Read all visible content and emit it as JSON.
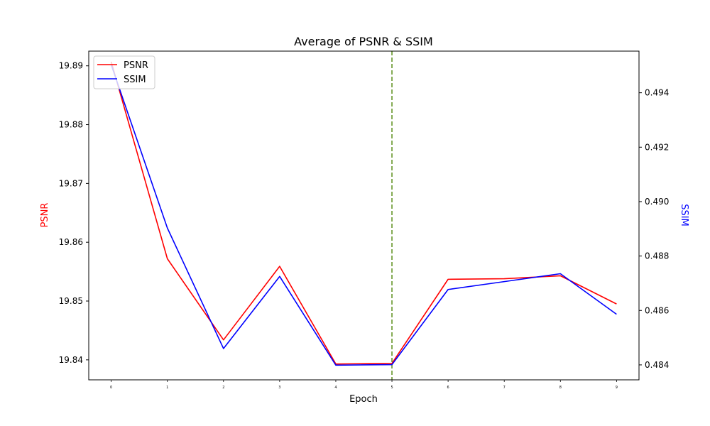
{
  "chart_data": {
    "type": "line",
    "title": "Average of PSNR & SSIM",
    "xlabel": "Epoch",
    "ylabel_left": "PSNR",
    "ylabel_right": "SSIM",
    "x": [
      0,
      1,
      2,
      3,
      4,
      5,
      6,
      7,
      8,
      9
    ],
    "xlim": [
      -0.4,
      9.4
    ],
    "ylim_left": [
      19.8366,
      19.8925
    ],
    "ylim_right": [
      0.48345,
      0.49553
    ],
    "left_ticks": [
      "19.84",
      "19.85",
      "19.86",
      "19.87",
      "19.88",
      "19.89"
    ],
    "right_ticks": [
      "0.484",
      "0.486",
      "0.488",
      "0.490",
      "0.492",
      "0.494"
    ],
    "x_ticks": [
      "0",
      "1",
      "2",
      "3",
      "4",
      "5",
      "6",
      "7",
      "8",
      "9"
    ],
    "series": [
      {
        "name": "PSNR",
        "axis": "left",
        "color": "#ff0000",
        "values": [
          19.8907,
          19.8572,
          19.8434,
          19.8559,
          19.8393,
          19.8394,
          19.8537,
          19.8538,
          19.8543,
          19.8495
        ]
      },
      {
        "name": "SSIM",
        "axis": "right",
        "color": "#0000ff",
        "values": [
          0.49503,
          0.48903,
          0.4846,
          0.48725,
          0.48399,
          0.48401,
          0.48677,
          0.48706,
          0.48735,
          0.48586
        ]
      }
    ],
    "vline": {
      "x": 5,
      "color": "#5a8f1a",
      "style": "dashed"
    },
    "legend": {
      "placement": "top-left"
    },
    "grid": false
  }
}
